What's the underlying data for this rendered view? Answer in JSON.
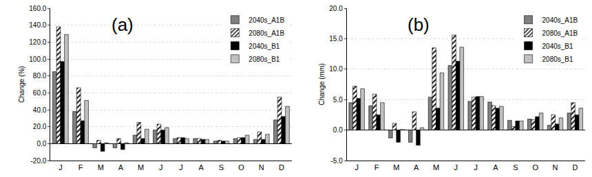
{
  "chart_data": [
    {
      "type": "bar",
      "title": "(a)",
      "y_label": "Change (%)",
      "categories": [
        "J",
        "F",
        "M",
        "A",
        "M",
        "J",
        "J",
        "A",
        "S",
        "O",
        "N",
        "D"
      ],
      "series": [
        {
          "name": "2040s_A1B",
          "color": "#808080",
          "values": [
            85,
            38,
            -5,
            -5,
            10,
            16,
            6,
            6,
            3,
            6,
            5,
            28
          ]
        },
        {
          "name": "2080s_A1B",
          "color": "#000000",
          "marker": "hatch",
          "values": [
            138,
            66,
            4,
            6,
            25,
            23,
            7,
            6,
            4,
            7,
            14,
            55
          ]
        },
        {
          "name": "2040s_B1",
          "color": "#000000",
          "values": [
            97,
            27,
            -9,
            -7,
            6,
            16,
            7,
            5,
            3,
            7,
            5,
            32
          ]
        },
        {
          "name": "2080s_B1",
          "color": "#c0c0c0",
          "values": [
            129,
            51,
            1,
            1,
            17,
            19,
            6,
            5,
            3,
            10,
            11,
            44
          ]
        }
      ],
      "ylim": [
        -20,
        160
      ],
      "yticks": [
        {
          "value": -20,
          "label": "-20.0"
        },
        {
          "value": 0,
          "label": "0.0"
        },
        {
          "value": 20,
          "label": "20.0"
        },
        {
          "value": 40,
          "label": "40.0"
        },
        {
          "value": 60,
          "label": "60.0"
        },
        {
          "value": 80,
          "label": "80.0"
        },
        {
          "value": 100,
          "label": "100.0"
        },
        {
          "value": 120,
          "label": "120.0"
        },
        {
          "value": 140,
          "label": "140.0"
        },
        {
          "value": 160,
          "label": "160.0"
        }
      ],
      "grid": true,
      "legend": "upper right"
    },
    {
      "type": "bar",
      "title": "(b)",
      "y_label": "Change (mm)",
      "categories": [
        "J",
        "F",
        "M",
        "A",
        "M",
        "J",
        "J",
        "A",
        "S",
        "O",
        "N",
        "D"
      ],
      "series": [
        {
          "name": "2040s_A1B",
          "color": "#808080",
          "values": [
            4.5,
            4.0,
            -1.3,
            -2.0,
            5.4,
            10.6,
            4.7,
            4.6,
            1.6,
            1.8,
            0.8,
            2.8
          ]
        },
        {
          "name": "2080s_A1B",
          "color": "#000000",
          "marker": "hatch",
          "values": [
            7.2,
            5.9,
            1.1,
            3.0,
            13.5,
            15.6,
            5.4,
            4.0,
            0.6,
            1.7,
            2.5,
            4.5
          ]
        },
        {
          "name": "2040s_B1",
          "color": "#000000",
          "values": [
            5.2,
            2.5,
            -2.0,
            -2.5,
            3.6,
            11.3,
            5.5,
            3.6,
            1.5,
            2.2,
            1.0,
            2.5
          ]
        },
        {
          "name": "2080s_B1",
          "color": "#c0c0c0",
          "values": [
            6.8,
            4.5,
            0.1,
            0.4,
            9.4,
            13.6,
            5.5,
            3.9,
            1.5,
            2.8,
            2.0,
            3.6
          ]
        }
      ],
      "ylim": [
        -5,
        20
      ],
      "yticks": [
        {
          "value": -5,
          "label": "-5.0"
        },
        {
          "value": 0,
          "label": "0.0"
        },
        {
          "value": 5,
          "label": "5.0"
        },
        {
          "value": 10,
          "label": "10.0"
        },
        {
          "value": 15,
          "label": "15.0"
        },
        {
          "value": 20,
          "label": "20.0"
        }
      ],
      "grid": true,
      "legend": "upper right"
    }
  ]
}
